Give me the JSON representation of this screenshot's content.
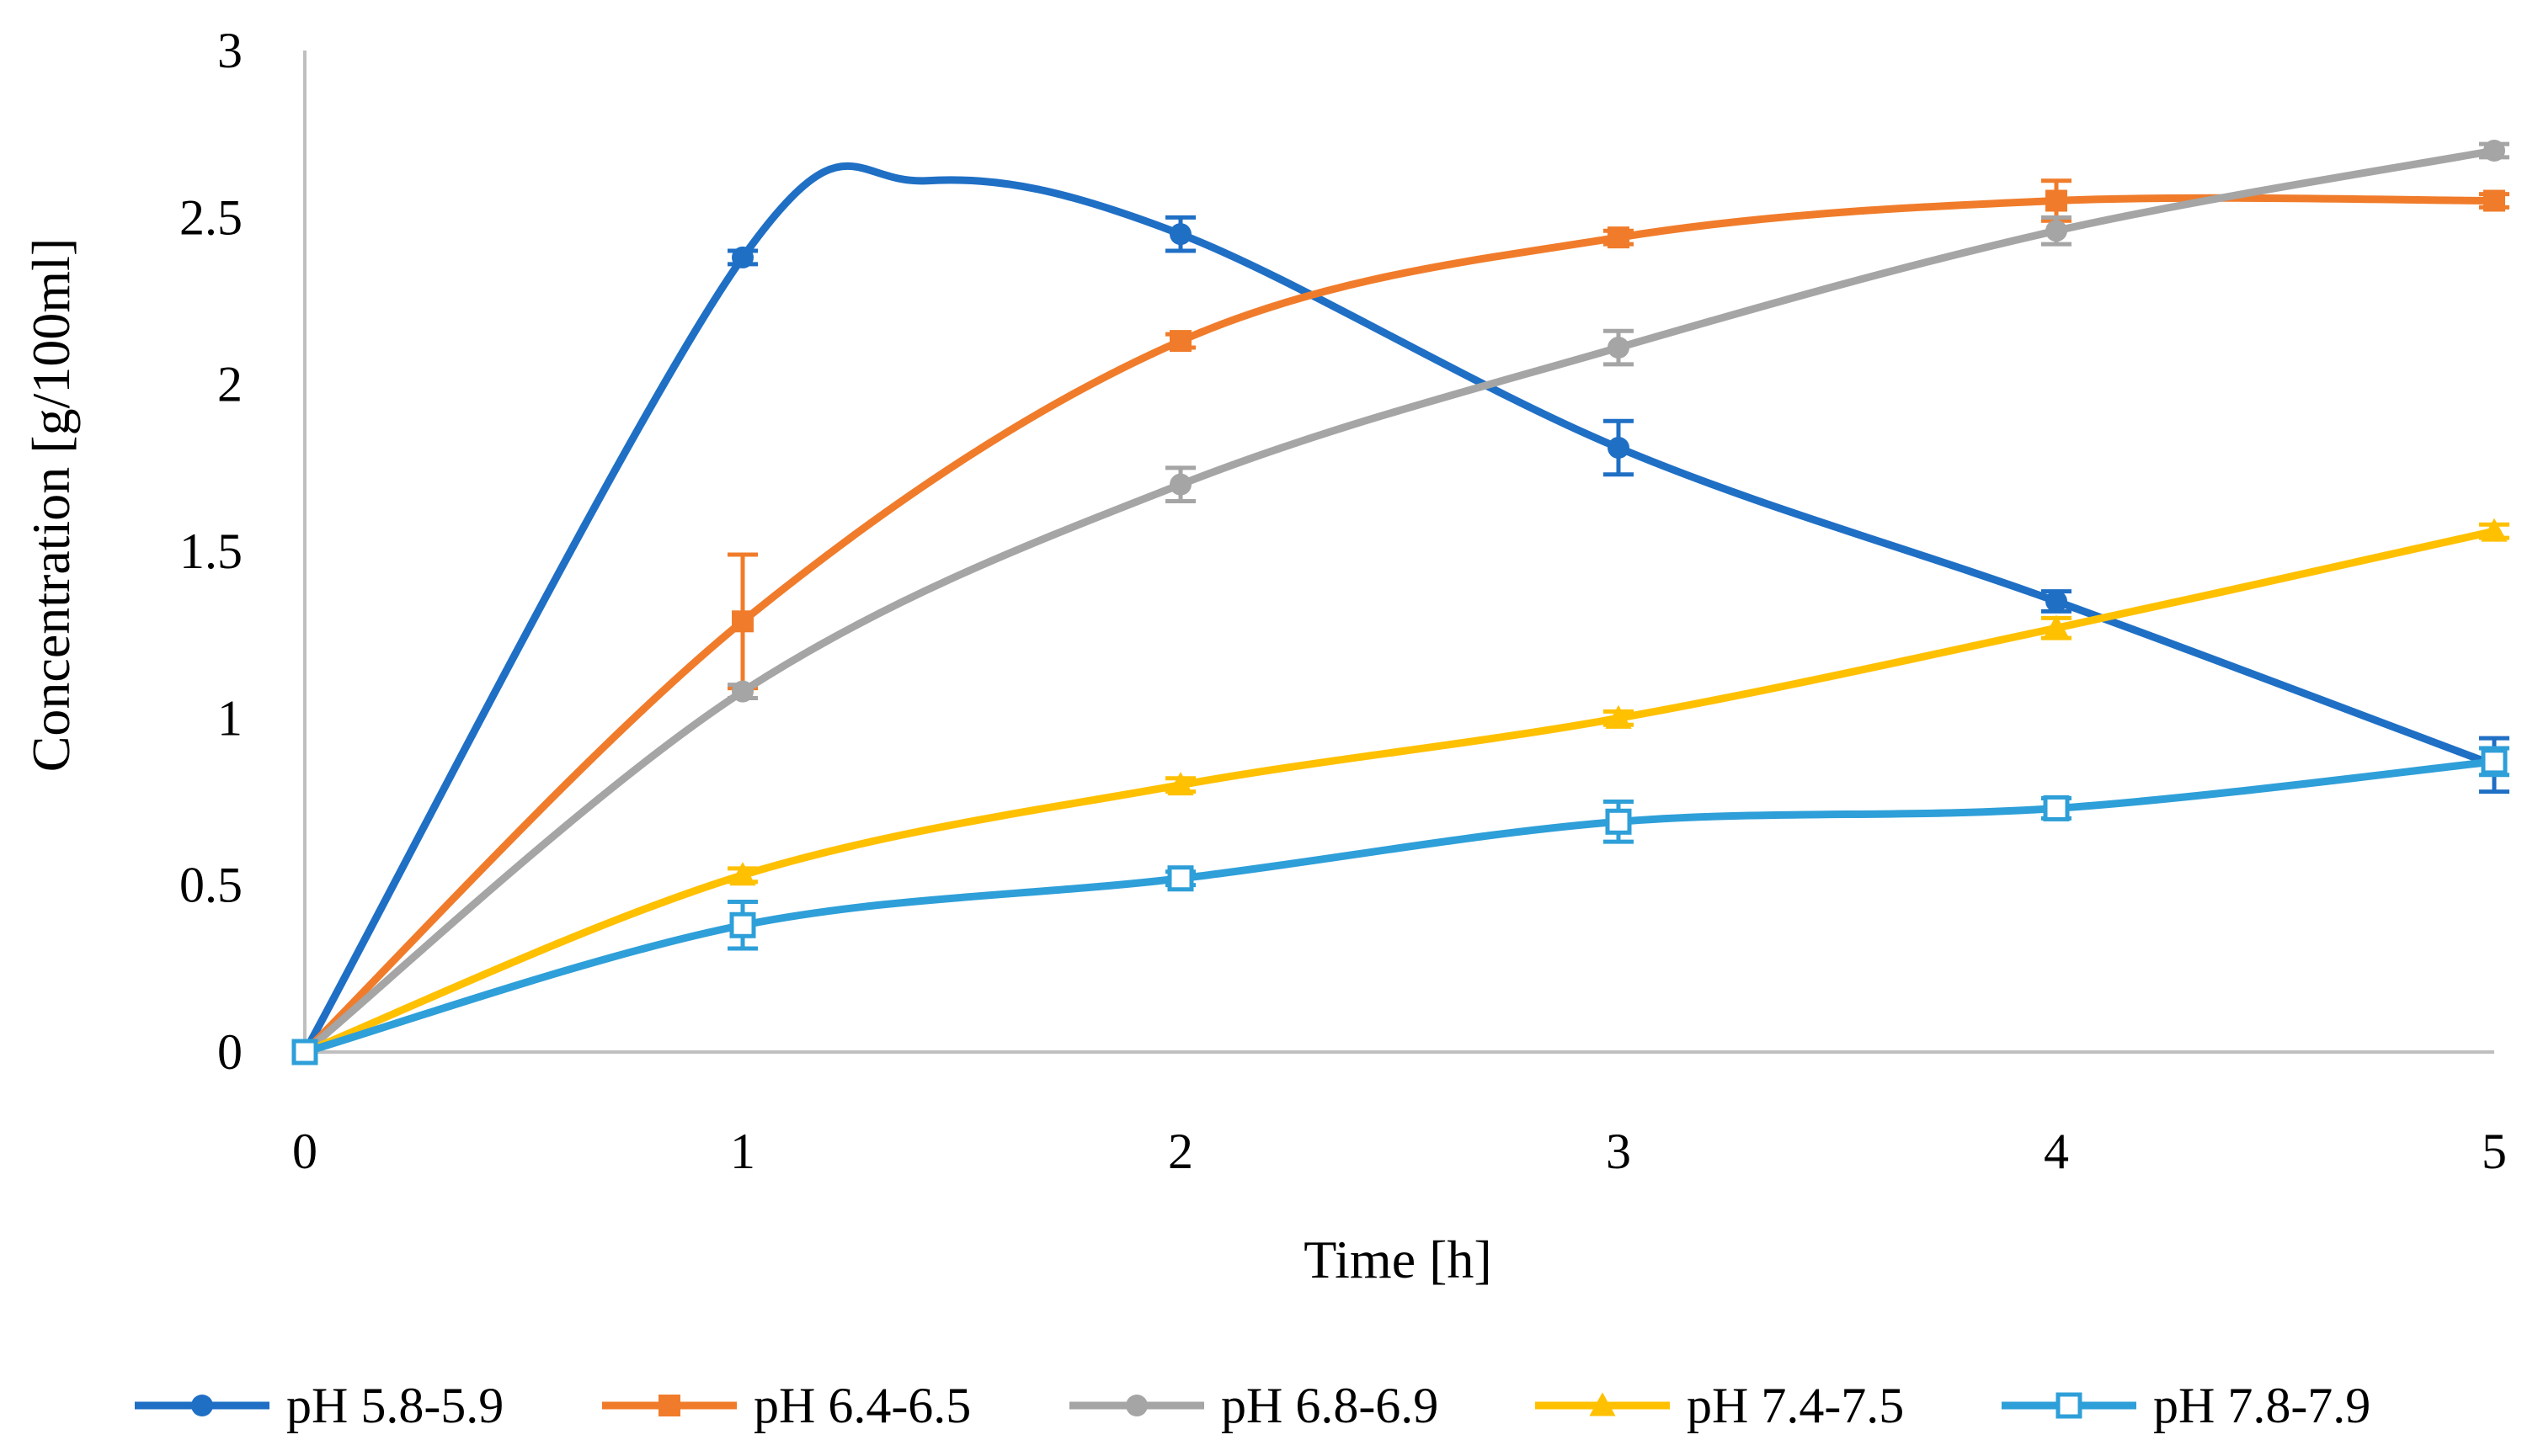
{
  "chart_data": {
    "type": "line",
    "title": "",
    "xlabel": "Time [h]",
    "ylabel": "Concentration [g/100ml]",
    "x": [
      0,
      1,
      2,
      3,
      4,
      5
    ],
    "xticks": [
      "0",
      "1",
      "2",
      "3",
      "4",
      "5"
    ],
    "yticks": [
      "0",
      "0.5",
      "1",
      "1.5",
      "2",
      "2.5",
      "3"
    ],
    "xlim": [
      0,
      5
    ],
    "ylim": [
      0,
      3
    ],
    "grid": false,
    "legend_position": "bottom",
    "series": [
      {
        "name": "pH 5.8-5.9",
        "color": "#1F6FC5",
        "marker": "circle",
        "values": [
          0,
          2.38,
          2.45,
          1.81,
          1.35,
          0.86
        ],
        "errors": [
          0,
          0.02,
          0.05,
          0.08,
          0.03,
          0.08
        ],
        "peak": {
          "x": 1.42,
          "y": 2.61
        }
      },
      {
        "name": "pH 6.4-6.5",
        "color": "#F07C2B",
        "marker": "square",
        "values": [
          0,
          1.29,
          2.13,
          2.44,
          2.55,
          2.55
        ],
        "errors": [
          0,
          0.2,
          0.02,
          0.02,
          0.06,
          0.02
        ]
      },
      {
        "name": "pH 6.8-6.9",
        "color": "#A5A5A5",
        "marker": "circle",
        "values": [
          0,
          1.08,
          1.7,
          2.11,
          2.46,
          2.7
        ],
        "errors": [
          0,
          0.02,
          0.05,
          0.05,
          0.04,
          0.02
        ]
      },
      {
        "name": "pH 7.4-7.5",
        "color": "#FFC000",
        "marker": "triangle",
        "values": [
          0,
          0.53,
          0.8,
          1.0,
          1.27,
          1.56
        ],
        "errors": [
          0,
          0.02,
          0.02,
          0.02,
          0.03,
          0.02
        ]
      },
      {
        "name": "pH 7.8-7.9",
        "color": "#2E9FD8",
        "marker": "open-square",
        "values": [
          0,
          0.38,
          0.52,
          0.69,
          0.73,
          0.87
        ],
        "errors": [
          0,
          0.07,
          0.02,
          0.06,
          0.03,
          0.04
        ]
      }
    ]
  }
}
